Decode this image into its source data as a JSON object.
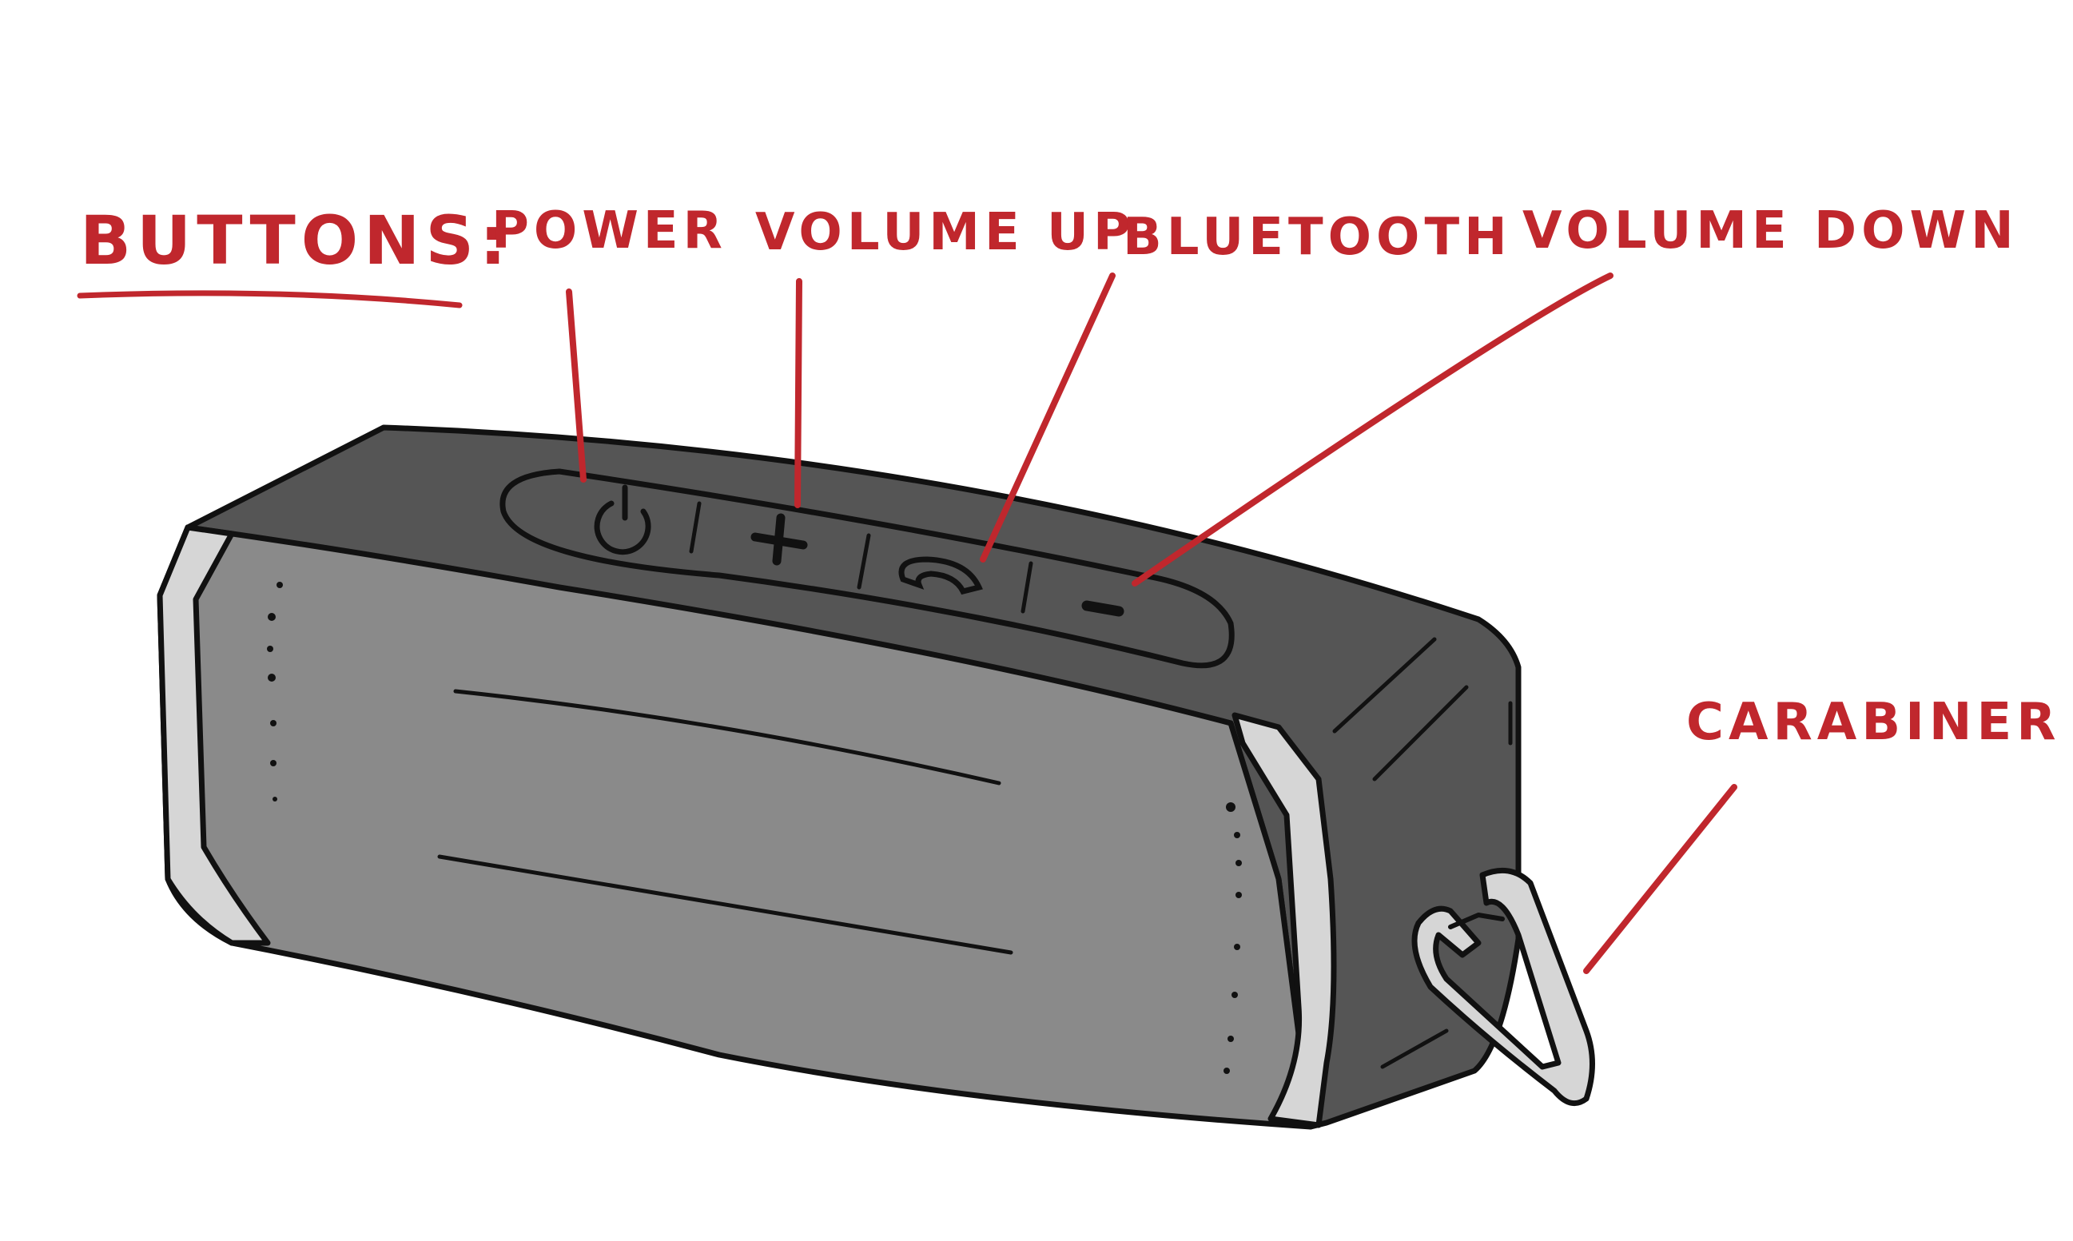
{
  "heading": "BUTTONS:",
  "labels": {
    "power": "POWER",
    "volume_up": "VOLUME UP",
    "bluetooth": "BLUETOOTH",
    "volume_down": "VOLUME DOWN",
    "carabiner": "CARABINER"
  },
  "colors": {
    "annotation": "#c0272d",
    "outline": "#111111",
    "speaker_top": "#555555",
    "speaker_front": "#8c8c8c",
    "bumper": "#d6d6d6"
  }
}
